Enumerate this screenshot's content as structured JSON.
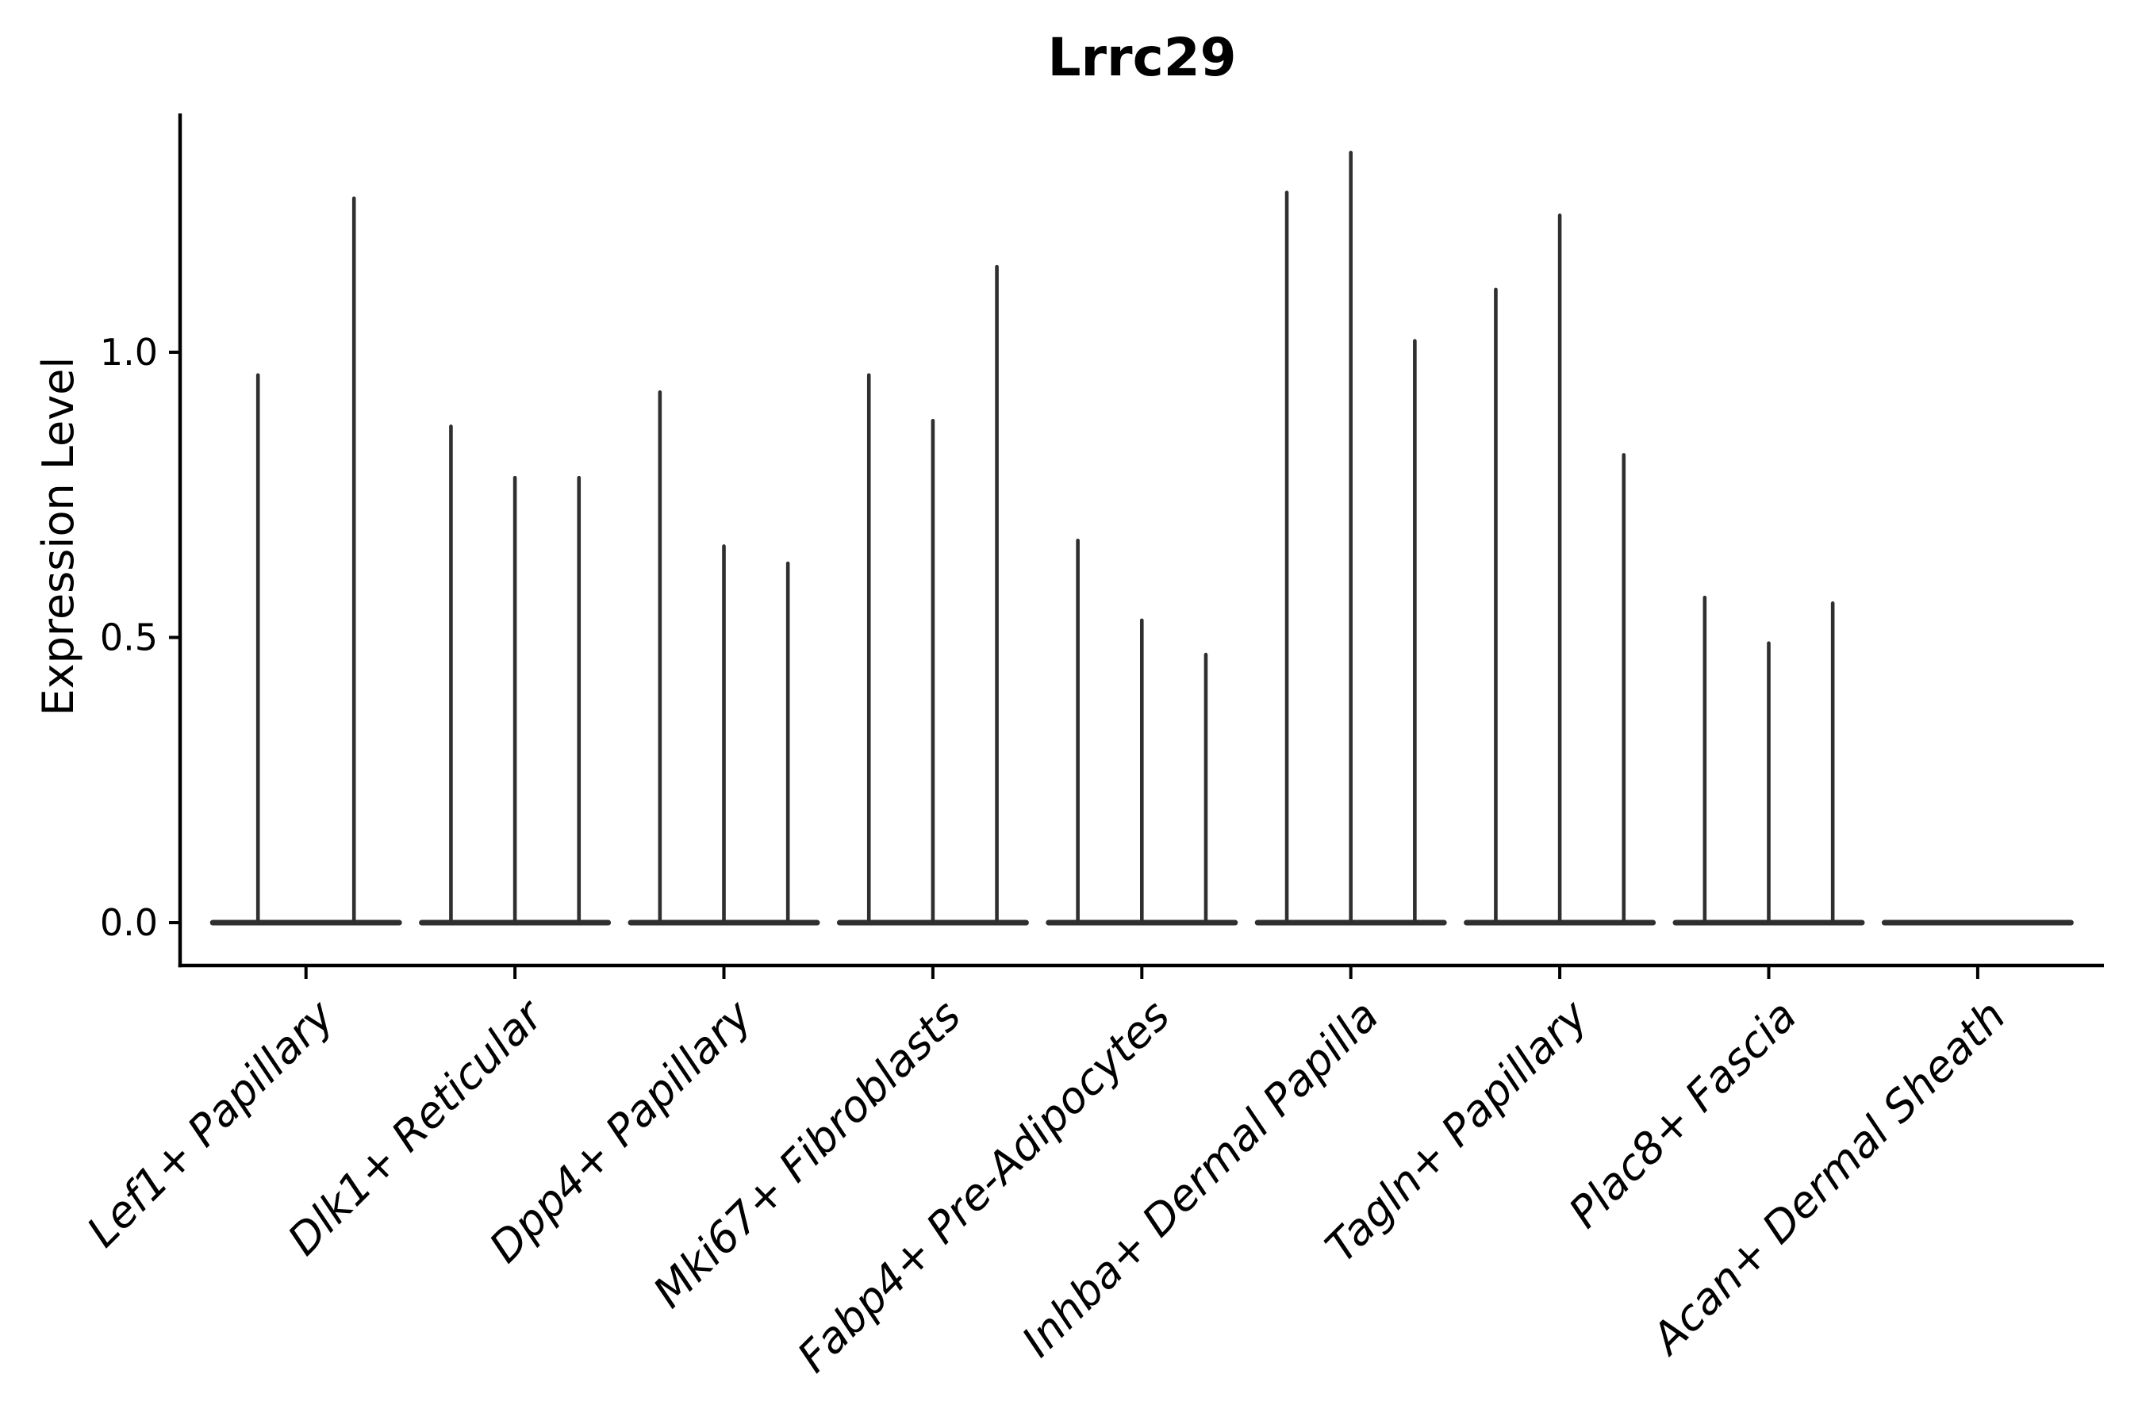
{
  "chart_data": {
    "type": "violin",
    "title": "Lrrc29",
    "xlabel": "",
    "ylabel": "Expression Level",
    "ytick_values": [
      0.0,
      0.5,
      1.0
    ],
    "ytick_labels": [
      "0.0",
      "0.5",
      "1.0"
    ],
    "ylim": [
      -0.075,
      1.42
    ],
    "grid": false,
    "legend": "none",
    "violin_color": "#2f2f2f",
    "axis_color": "#000000",
    "background_color": "#ffffff",
    "categories": [
      "Lef1+ Papillary",
      "Dlk1+ Reticular",
      "Dpp4+ Papillary",
      "Mki67+ Fibroblasts",
      "Fabp4+ Pre-Adipocytes",
      "Inhba+ Dermal Papilla",
      "Tagln+ Papillary",
      "Plac8+ Fascia",
      "Acan+ Dermal Sheath"
    ],
    "groups": [
      {
        "category": "Lef1+ Papillary",
        "violin_maxima": [
          0.96,
          1.27
        ]
      },
      {
        "category": "Dlk1+ Reticular",
        "violin_maxima": [
          0.87,
          0.78,
          0.78
        ]
      },
      {
        "category": "Dpp4+ Papillary",
        "violin_maxima": [
          0.93,
          0.66,
          0.63
        ]
      },
      {
        "category": "Mki67+ Fibroblasts",
        "violin_maxima": [
          0.96,
          0.88,
          1.15
        ]
      },
      {
        "category": "Fabp4+ Pre-Adipocytes",
        "violin_maxima": [
          0.67,
          0.53,
          0.47
        ]
      },
      {
        "category": "Inhba+ Dermal Papilla",
        "violin_maxima": [
          1.28,
          1.35,
          1.02
        ]
      },
      {
        "category": "Tagln+ Papillary",
        "violin_maxima": [
          1.11,
          1.24,
          0.82
        ]
      },
      {
        "category": "Plac8+ Fascia",
        "violin_maxima": [
          0.57,
          0.49,
          0.56
        ]
      },
      {
        "category": "Acan+ Dermal Sheath",
        "violin_maxima": [
          0,
          0,
          0
        ]
      }
    ]
  }
}
